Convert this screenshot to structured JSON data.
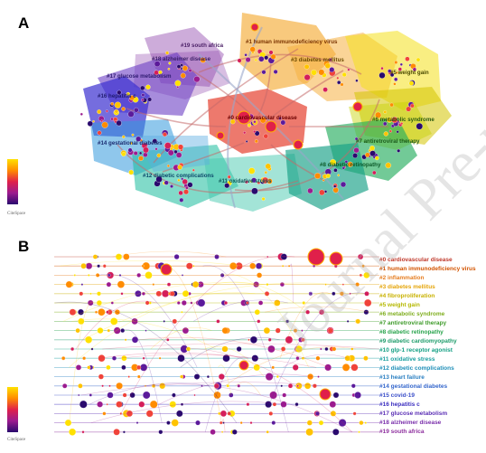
{
  "panels": {
    "a": "A",
    "b": "B"
  },
  "watermark": "Journal Pre-proof",
  "scale_label": "CiteSpace",
  "clusters": [
    {
      "id": "0",
      "label": "#0 cardiovascular disease",
      "color": "#c0392b"
    },
    {
      "id": "1",
      "label": "#1 human immunodeficiency virus",
      "color": "#d35400"
    },
    {
      "id": "2",
      "label": "#2 inflammation",
      "color": "#e67e22"
    },
    {
      "id": "3",
      "label": "#3 diabetes mellitus",
      "color": "#e5a50a"
    },
    {
      "id": "4",
      "label": "#4 fibroproliferation",
      "color": "#c9b200"
    },
    {
      "id": "5",
      "label": "#5 weight gain",
      "color": "#b5b800"
    },
    {
      "id": "6",
      "label": "#6 metabolic syndrome",
      "color": "#7fae1e"
    },
    {
      "id": "7",
      "label": "#7 antiretroviral therapy",
      "color": "#3e9b2a"
    },
    {
      "id": "8",
      "label": "#8 diabetic retinopathy",
      "color": "#27a34b"
    },
    {
      "id": "9",
      "label": "#9 diabetic cardiomyopathy",
      "color": "#1d9c6a"
    },
    {
      "id": "10",
      "label": "#10 glp-1 receptor agonist",
      "color": "#16a085"
    },
    {
      "id": "11",
      "label": "#11 oxidative stress",
      "color": "#1a9fa0"
    },
    {
      "id": "12",
      "label": "#12 diabetic complications",
      "color": "#1f8fb8"
    },
    {
      "id": "13",
      "label": "#13 heart failure",
      "color": "#2a7fc2"
    },
    {
      "id": "14",
      "label": "#14 gestational diabetes",
      "color": "#3366cc"
    },
    {
      "id": "15",
      "label": "#15 covid-19",
      "color": "#3b4fc9"
    },
    {
      "id": "16",
      "label": "#16 hepatitis c",
      "color": "#3a2dbf"
    },
    {
      "id": "17",
      "label": "#17 glucose metabolism",
      "color": "#5b2fb5"
    },
    {
      "id": "18",
      "label": "#18 alzheimer disease",
      "color": "#7a2fab"
    },
    {
      "id": "19",
      "label": "#19 south africa",
      "color": "#8e2f9e"
    }
  ],
  "network_labels": [
    {
      "text": "#1 human immunodeficiency virus",
      "color": "#7a3300"
    },
    {
      "text": "#19 south africa",
      "color": "#5a1f66"
    },
    {
      "text": "#18 alzheimer disease",
      "color": "#4a1f66"
    },
    {
      "text": "#3 diabetes mellitus",
      "color": "#6b4a00"
    },
    {
      "text": "#17 glucose metabolism",
      "color": "#2e1a70"
    },
    {
      "text": "#5 weight gain",
      "color": "#5a5a00"
    },
    {
      "text": "#16 hepatitis c",
      "color": "#1f1a70"
    },
    {
      "text": "#0 cardiovascular disease",
      "color": "#6b0000"
    },
    {
      "text": "#6 metabolic syndrome",
      "color": "#2a5a10"
    },
    {
      "text": "#7 antiretroviral therapy",
      "color": "#1a5a1a"
    },
    {
      "text": "#14 gestational diabetes",
      "color": "#1a2a70"
    },
    {
      "text": "#8 diabetic retinopathy",
      "color": "#0d5a2a"
    },
    {
      "text": "#12 diabetic complications",
      "color": "#0d4a6b"
    },
    {
      "text": "#11 oxidative stress",
      "color": "#0d5a5a"
    }
  ]
}
